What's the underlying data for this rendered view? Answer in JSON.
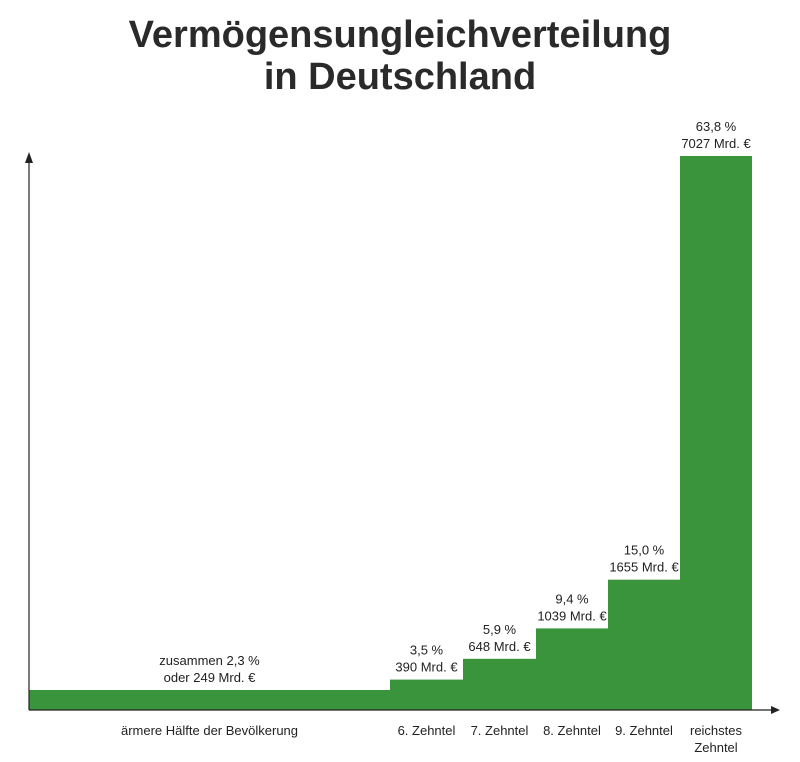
{
  "chart_data": {
    "type": "bar",
    "title_lines": [
      "Vermögensungleichverteilung",
      "in Deutschland"
    ],
    "categories": [
      {
        "label_lines": [
          "ärmere Hälfte der Bevölkerung"
        ],
        "share": 0.5
      },
      {
        "label_lines": [
          "6. Zehntel"
        ],
        "share": 0.1
      },
      {
        "label_lines": [
          "7. Zehntel"
        ],
        "share": 0.1
      },
      {
        "label_lines": [
          "8. Zehntel"
        ],
        "share": 0.1
      },
      {
        "label_lines": [
          "9. Zehntel"
        ],
        "share": 0.1
      },
      {
        "label_lines": [
          "reichstes",
          "Zehntel"
        ],
        "share": 0.1
      }
    ],
    "values": [
      2.3,
      3.5,
      5.9,
      9.4,
      15.0,
      63.8
    ],
    "amounts_mrd_eur": [
      249,
      390,
      648,
      1039,
      1655,
      7027
    ],
    "value_labels": [
      [
        "zusammen 2,3 %",
        "oder 249 Mrd. €"
      ],
      [
        "3,5 %",
        "390 Mrd. €"
      ],
      [
        "5,9 %",
        "648 Mrd. €"
      ],
      [
        "9,4 %",
        "1039 Mrd. €"
      ],
      [
        "15,0 %",
        "1655 Mrd. €"
      ],
      [
        "63,8 %",
        "7027 Mrd. €"
      ]
    ],
    "bar_color": "#3a943c",
    "axis_color": "#222222",
    "grid": false,
    "legend": "none"
  }
}
